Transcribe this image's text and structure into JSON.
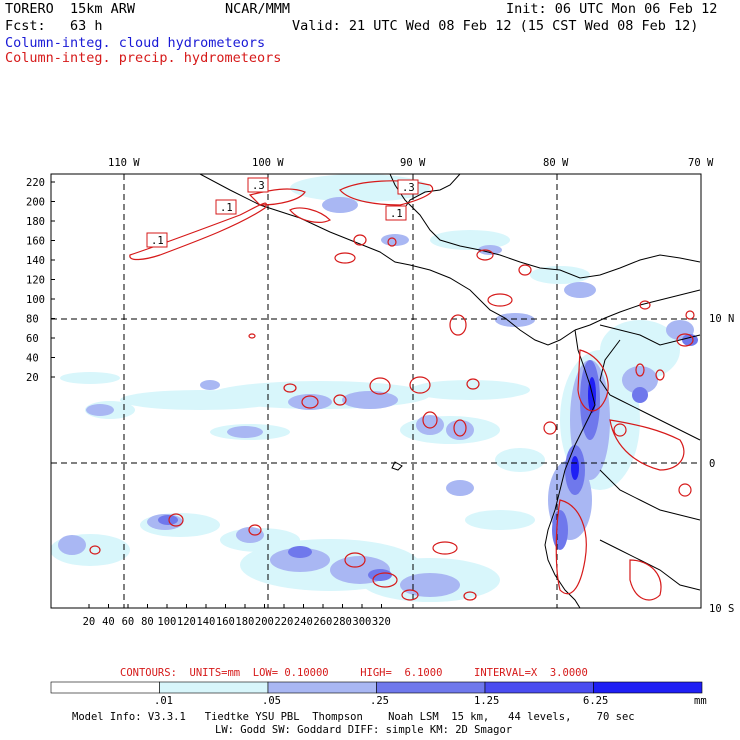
{
  "header": {
    "model": "TORERO  15km ARW",
    "center": "NCAR/MMM",
    "init": "Init: 06 UTC Mon 06 Feb 12",
    "fcst": "Fcst:   63 h",
    "valid": "Valid: 21 UTC Wed 08 Feb 12 (15 CST Wed 08 Feb 12)",
    "field1": "Column-integ. cloud hydrometeors",
    "field2": "Column-integ. precip. hydrometeors"
  },
  "map": {
    "lon_labels": [
      "110 W",
      "100 W",
      "90 W",
      "80 W",
      "70 W"
    ],
    "lat_labels": [
      "10 N",
      "0",
      "10 S"
    ],
    "y_ticks": [
      "220",
      "200",
      "180",
      "160",
      "140",
      "120",
      "100",
      "80",
      "60",
      "40",
      "20"
    ],
    "x_ticks": [
      "20",
      "40",
      "60",
      "80",
      "100",
      "120",
      "140",
      "160",
      "180",
      "200",
      "220",
      "240",
      "260",
      "280",
      "300",
      "320"
    ],
    "contour_labels": [
      ".1",
      ".1",
      ".3",
      ".3",
      ".1"
    ]
  },
  "contours": {
    "info": "CONTOURS:  UNITS=mm  LOW= 0.10000     HIGH=  6.1000     INTERVAL=X  3.0000"
  },
  "colorbar": {
    "labels": [
      ".01",
      ".05",
      ".25",
      "1.25",
      "6.25"
    ],
    "unit": "mm",
    "colors": [
      "#ffffff",
      "#d8f6fb",
      "#a9b7f3",
      "#6f78ec",
      "#4a4cf0",
      "#1f1ff4"
    ]
  },
  "model_info": {
    "line1": "Model Info: V3.3.1   Tiedtke YSU PBL  Thompson    Noah LSM  15 km,   44 levels,    70 sec",
    "line2": "LW: Godd SW: Goddard DIFF: simple KM: 2D Smagor"
  }
}
